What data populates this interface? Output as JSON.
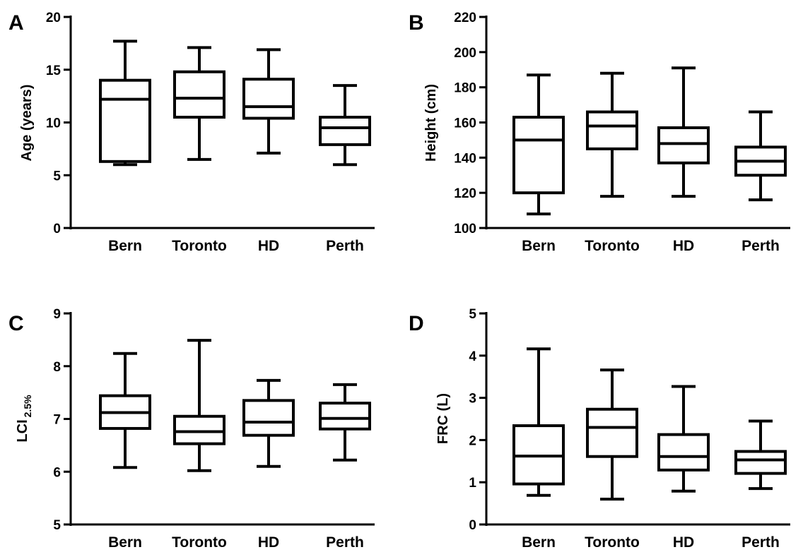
{
  "chart_data": [
    {
      "panel": "A",
      "type": "box",
      "ylabel": "Age (years)",
      "ylabel_sub": "",
      "ylim": [
        0,
        20
      ],
      "yticks": [
        0,
        5,
        10,
        15,
        20
      ],
      "categories": [
        "Bern",
        "Toronto",
        "HD",
        "Perth"
      ],
      "boxes": [
        {
          "min": 6.0,
          "q1": 6.3,
          "median": 12.2,
          "q3": 14.0,
          "max": 17.7
        },
        {
          "min": 6.5,
          "q1": 10.5,
          "median": 12.3,
          "q3": 14.8,
          "max": 17.1
        },
        {
          "min": 7.1,
          "q1": 10.4,
          "median": 11.5,
          "q3": 14.1,
          "max": 16.9
        },
        {
          "min": 6.0,
          "q1": 7.9,
          "median": 9.5,
          "q3": 10.5,
          "max": 13.5
        }
      ]
    },
    {
      "panel": "B",
      "type": "box",
      "ylabel": "Height (cm)",
      "ylabel_sub": "",
      "ylim": [
        100,
        220
      ],
      "yticks": [
        100,
        120,
        140,
        160,
        180,
        200,
        220
      ],
      "categories": [
        "Bern",
        "Toronto",
        "HD",
        "Perth"
      ],
      "boxes": [
        {
          "min": 108,
          "q1": 120,
          "median": 150,
          "q3": 163,
          "max": 187
        },
        {
          "min": 118,
          "q1": 145,
          "median": 158,
          "q3": 166,
          "max": 188
        },
        {
          "min": 118,
          "q1": 137,
          "median": 148,
          "q3": 157,
          "max": 191
        },
        {
          "min": 116,
          "q1": 130,
          "median": 138,
          "q3": 146,
          "max": 166
        }
      ]
    },
    {
      "panel": "C",
      "type": "box",
      "ylabel": "LCI",
      "ylabel_sub": "2.5%",
      "ylim": [
        5,
        9
      ],
      "yticks": [
        5,
        6,
        7,
        8,
        9
      ],
      "categories": [
        "Bern",
        "Toronto",
        "HD",
        "Perth"
      ],
      "boxes": [
        {
          "min": 6.08,
          "q1": 6.82,
          "median": 7.12,
          "q3": 7.44,
          "max": 8.24
        },
        {
          "min": 6.02,
          "q1": 6.53,
          "median": 6.76,
          "q3": 7.05,
          "max": 8.49
        },
        {
          "min": 6.1,
          "q1": 6.69,
          "median": 6.94,
          "q3": 7.35,
          "max": 7.73
        },
        {
          "min": 6.22,
          "q1": 6.81,
          "median": 7.01,
          "q3": 7.3,
          "max": 7.65
        }
      ]
    },
    {
      "panel": "D",
      "type": "box",
      "ylabel": "FRC (L)",
      "ylabel_sub": "",
      "ylim": [
        0,
        5
      ],
      "yticks": [
        0,
        1,
        2,
        3,
        4,
        5
      ],
      "categories": [
        "Bern",
        "Toronto",
        "HD",
        "Perth"
      ],
      "boxes": [
        {
          "min": 0.69,
          "q1": 0.96,
          "median": 1.62,
          "q3": 2.34,
          "max": 4.16
        },
        {
          "min": 0.6,
          "q1": 1.61,
          "median": 2.3,
          "q3": 2.73,
          "max": 3.66
        },
        {
          "min": 0.79,
          "q1": 1.29,
          "median": 1.61,
          "q3": 2.13,
          "max": 3.27
        },
        {
          "min": 0.85,
          "q1": 1.21,
          "median": 1.53,
          "q3": 1.73,
          "max": 2.45
        }
      ]
    }
  ],
  "style": {
    "stroke_color": "#000000",
    "background": "#ffffff"
  }
}
